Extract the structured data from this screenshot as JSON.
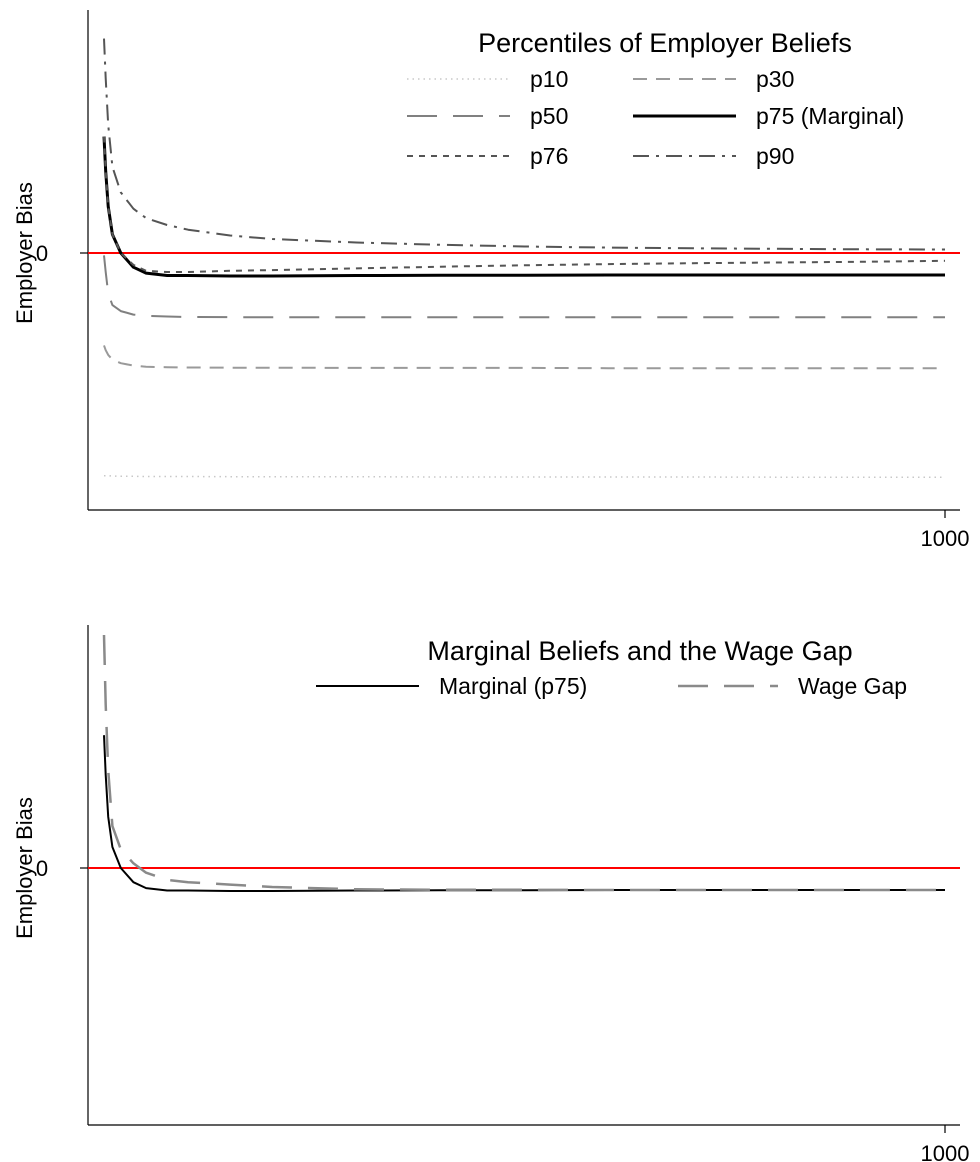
{
  "colors": {
    "zero_line": "#ff0000",
    "axis": "#000000",
    "text": "#000000"
  },
  "chart_data": [
    {
      "type": "line",
      "title": "Percentiles of Employer Beliefs",
      "xlabel": "",
      "ylabel": "Employer Bias",
      "x_tick_labels": [
        "1000"
      ],
      "y_tick_labels": [
        "0"
      ],
      "xlim": [
        0,
        1000
      ],
      "ylim": [
        -1.0,
        1.0
      ],
      "reference_line": {
        "y": 0,
        "color": "#ff0000"
      },
      "grid": false,
      "legend_position": "top-right",
      "legend_columns": 2,
      "x": [
        0,
        2,
        5,
        10,
        20,
        35,
        50,
        75,
        100,
        150,
        200,
        300,
        400,
        500,
        600,
        700,
        800,
        900,
        1000
      ],
      "series": [
        {
          "name": "p10",
          "style": "dotted",
          "color": "#c8c8c8",
          "width": 1.5,
          "values": [
            -0.94,
            -0.94,
            -0.94,
            -0.941,
            -0.942,
            -0.942,
            -0.943,
            -0.943,
            -0.943,
            -0.944,
            -0.944,
            -0.944,
            -0.945,
            -0.945,
            -0.945,
            -0.945,
            -0.946,
            -0.946,
            -0.946
          ]
        },
        {
          "name": "p30",
          "style": "longdash",
          "color": "#9a9a9a",
          "width": 2,
          "values": [
            -0.39,
            -0.41,
            -0.43,
            -0.45,
            -0.465,
            -0.475,
            -0.48,
            -0.482,
            -0.483,
            -0.484,
            -0.484,
            -0.485,
            -0.485,
            -0.485,
            -0.486,
            -0.486,
            -0.486,
            -0.486,
            -0.486
          ]
        },
        {
          "name": "p50",
          "style": "vlongdash",
          "color": "#808080",
          "width": 2,
          "values": [
            -0.01,
            -0.08,
            -0.17,
            -0.22,
            -0.245,
            -0.26,
            -0.265,
            -0.268,
            -0.27,
            -0.271,
            -0.271,
            -0.271,
            -0.271,
            -0.271,
            -0.271,
            -0.271,
            -0.271,
            -0.271,
            -0.271
          ]
        },
        {
          "name": "p75 (Marginal)",
          "style": "solid",
          "color": "#000000",
          "width": 3,
          "values": [
            0.5,
            0.35,
            0.2,
            0.08,
            0.0,
            -0.06,
            -0.085,
            -0.095,
            -0.095,
            -0.097,
            -0.097,
            -0.095,
            -0.094,
            -0.094,
            -0.093,
            -0.093,
            -0.093,
            -0.093,
            -0.093
          ]
        },
        {
          "name": "p76",
          "style": "shortdash",
          "color": "#555555",
          "width": 2,
          "values": [
            0.5,
            0.35,
            0.2,
            0.08,
            0.0,
            -0.05,
            -0.075,
            -0.08,
            -0.08,
            -0.075,
            -0.072,
            -0.065,
            -0.058,
            -0.052,
            -0.047,
            -0.043,
            -0.04,
            -0.037,
            -0.033
          ]
        },
        {
          "name": "p90",
          "style": "dashdot",
          "color": "#555555",
          "width": 2,
          "values": [
            0.92,
            0.75,
            0.55,
            0.37,
            0.26,
            0.19,
            0.15,
            0.12,
            0.1,
            0.075,
            0.06,
            0.045,
            0.035,
            0.028,
            0.023,
            0.02,
            0.018,
            0.016,
            0.015
          ]
        }
      ]
    },
    {
      "type": "line",
      "title": "Marginal Beliefs and the Wage Gap",
      "xlabel": "",
      "ylabel": "Employer Bias",
      "x_tick_labels": [
        "1000"
      ],
      "y_tick_labels": [
        "0"
      ],
      "xlim": [
        0,
        1000
      ],
      "ylim": [
        -1.0,
        1.0
      ],
      "reference_line": {
        "y": 0,
        "color": "#ff0000"
      },
      "grid": false,
      "legend_position": "top-right",
      "legend_columns": 2,
      "x": [
        0,
        2,
        5,
        10,
        20,
        35,
        50,
        75,
        100,
        150,
        200,
        300,
        400,
        500,
        600,
        700,
        800,
        900,
        1000
      ],
      "series": [
        {
          "name": "Marginal (p75)",
          "style": "solid",
          "color": "#000000",
          "width": 2,
          "values": [
            0.57,
            0.4,
            0.22,
            0.09,
            0.0,
            -0.06,
            -0.085,
            -0.095,
            -0.095,
            -0.097,
            -0.097,
            -0.095,
            -0.094,
            -0.094,
            -0.093,
            -0.093,
            -0.093,
            -0.093,
            -0.093
          ]
        },
        {
          "name": "Wage Gap",
          "style": "vlongdash",
          "color": "#8a8a8a",
          "width": 2.5,
          "values": [
            1.0,
            0.7,
            0.42,
            0.18,
            0.08,
            0.02,
            -0.02,
            -0.05,
            -0.06,
            -0.07,
            -0.08,
            -0.09,
            -0.092,
            -0.092,
            -0.093,
            -0.093,
            -0.093,
            -0.093,
            -0.093
          ]
        }
      ]
    }
  ]
}
